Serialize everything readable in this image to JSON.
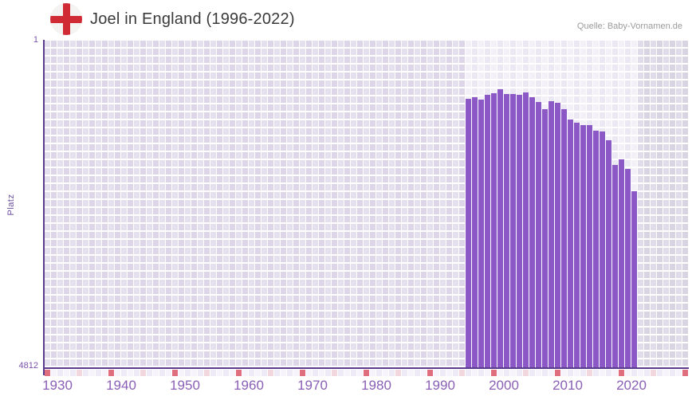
{
  "header": {
    "title": "Joel in England (1996-2022)",
    "source": "Quelle: Baby-Vornamen.de"
  },
  "chart_data": {
    "type": "bar",
    "title": "Joel in England (1996-2022)",
    "ylabel": "Platz",
    "xlabel": "",
    "y_axis": {
      "top_label": "1",
      "bottom_label": "4812",
      "min": 1,
      "max": 4812,
      "inverted": true
    },
    "x_axis": {
      "start_year": 1930,
      "end_year": 2030,
      "tick_labels": [
        "1930",
        "1940",
        "1950",
        "1960",
        "1970",
        "1980",
        "1990",
        "2000",
        "2010",
        "2020"
      ],
      "marker_interval_red": 10,
      "marker_interval_pink": 5
    },
    "grid": true,
    "legend": null,
    "categories": [
      1996,
      1997,
      1998,
      1999,
      2000,
      2001,
      2002,
      2003,
      2004,
      2005,
      2006,
      2007,
      2008,
      2009,
      2010,
      2011,
      2012,
      2013,
      2014,
      2015,
      2016,
      2017,
      2018,
      2019,
      2020,
      2021,
      2022
    ],
    "values": [
      858,
      833,
      866,
      798,
      771,
      713,
      783,
      790,
      798,
      760,
      830,
      908,
      1006,
      895,
      915,
      1006,
      1162,
      1212,
      1240,
      1247,
      1326,
      1334,
      1467,
      1834,
      1748,
      1893,
      2218
    ],
    "colors": {
      "bar": "#8b58c5",
      "axis_line": "#5a3b8e",
      "tick_text": "#8a5fb5",
      "strip_red": "#df6f7e",
      "strip_pink": "#f2d8de",
      "strip_even": "#efebf6",
      "strip_odd": "#f6f4fa",
      "flag_cross": "#d02b35",
      "flag_bg": "#f4f3f1"
    }
  }
}
